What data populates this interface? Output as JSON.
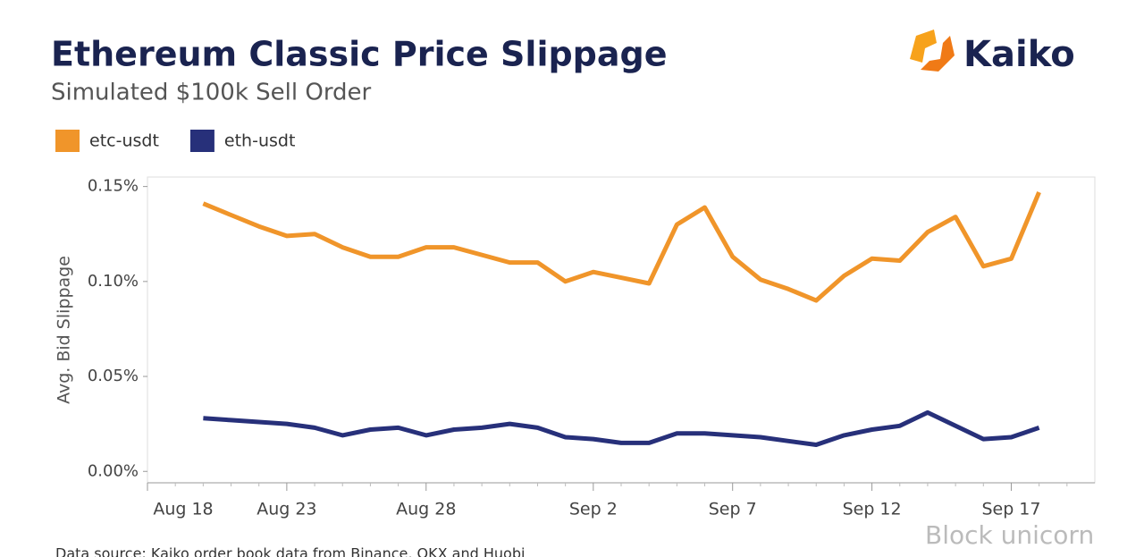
{
  "chart_data": {
    "type": "line",
    "title": "Ethereum Classic Price Slippage",
    "subtitle": "Simulated $100k Sell Order",
    "brand": "Kaiko",
    "y_label": "Avg. Bid Slippage",
    "source": "Data source: Kaiko order book data from Binance, OKX and Huobi",
    "watermark": "Block unicorn",
    "categories": [
      "Aug 18",
      null,
      null,
      null,
      null,
      "Aug 23",
      null,
      null,
      null,
      null,
      "Aug 28",
      null,
      null,
      null,
      null,
      null,
      "Sep 2",
      null,
      null,
      null,
      null,
      "Sep 7",
      null,
      null,
      null,
      null,
      "Sep 12",
      null,
      null,
      null,
      null,
      "Sep 17",
      null,
      null
    ],
    "series": [
      {
        "name": "etc-usdt",
        "color": "#f0952a",
        "values": [
          null,
          null,
          0.141,
          0.135,
          0.129,
          0.124,
          0.125,
          0.118,
          0.113,
          0.113,
          0.118,
          0.118,
          0.114,
          0.11,
          0.11,
          0.1,
          0.105,
          0.102,
          0.099,
          0.13,
          0.139,
          0.113,
          0.101,
          0.096,
          0.09,
          0.103,
          0.112,
          0.111,
          0.126,
          0.134,
          0.108,
          0.112,
          0.147,
          null
        ]
      },
      {
        "name": "eth-usdt",
        "color": "#27307a",
        "values": [
          null,
          null,
          0.028,
          0.027,
          0.026,
          0.025,
          0.023,
          0.019,
          0.022,
          0.023,
          0.019,
          0.022,
          0.023,
          0.025,
          0.023,
          0.018,
          0.017,
          0.015,
          0.015,
          0.02,
          0.02,
          0.019,
          0.018,
          0.016,
          0.014,
          0.019,
          0.022,
          0.024,
          0.031,
          0.024,
          0.017,
          0.018,
          0.023,
          null
        ]
      }
    ],
    "ylim": [
      -0.006,
      0.155
    ],
    "yticks": [
      {
        "value": 0,
        "label": "0.00%"
      },
      {
        "value": 0.05,
        "label": "0.05%"
      },
      {
        "value": 0.1,
        "label": "0.10%"
      },
      {
        "value": 0.15,
        "label": "0.15%"
      }
    ],
    "legend": "top-left"
  }
}
